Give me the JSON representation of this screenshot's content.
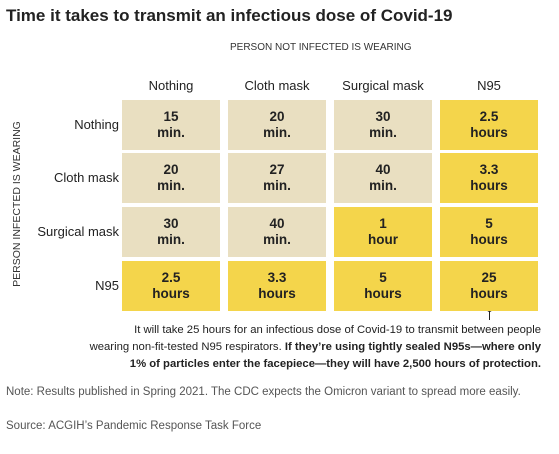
{
  "title": "Time it takes to transmit an infectious dose of Covid-19",
  "column_axis_label": "PERSON NOT INFECTED IS WEARING",
  "row_axis_label": "PERSON INFECTED IS WEARING",
  "table": {
    "columns": [
      "Nothing",
      "Cloth mask",
      "Surgical mask",
      "N95"
    ],
    "rows": [
      {
        "label": "Nothing",
        "cells": [
          {
            "value": "15",
            "unit": "min.",
            "color": "#e9dfc1"
          },
          {
            "value": "20",
            "unit": "min.",
            "color": "#e9dfc1"
          },
          {
            "value": "30",
            "unit": "min.",
            "color": "#e9dfc1"
          },
          {
            "value": "2.5",
            "unit": "hours",
            "color": "#f4d54b"
          }
        ]
      },
      {
        "label": "Cloth mask",
        "cells": [
          {
            "value": "20",
            "unit": "min.",
            "color": "#e9dfc1"
          },
          {
            "value": "27",
            "unit": "min.",
            "color": "#e9dfc1"
          },
          {
            "value": "40",
            "unit": "min.",
            "color": "#e9dfc1"
          },
          {
            "value": "3.3",
            "unit": "hours",
            "color": "#f4d54b"
          }
        ]
      },
      {
        "label": "Surgical mask",
        "cells": [
          {
            "value": "30",
            "unit": "min.",
            "color": "#e9dfc1"
          },
          {
            "value": "40",
            "unit": "min.",
            "color": "#e9dfc1"
          },
          {
            "value": "1",
            "unit": "hour",
            "color": "#f4d54b"
          },
          {
            "value": "5",
            "unit": "hours",
            "color": "#f4d54b"
          }
        ]
      },
      {
        "label": "N95",
        "cells": [
          {
            "value": "2.5",
            "unit": "hours",
            "color": "#f4d54b"
          },
          {
            "value": "3.3",
            "unit": "hours",
            "color": "#f4d54b"
          },
          {
            "value": "5",
            "unit": "hours",
            "color": "#f4d54b"
          },
          {
            "value": "25",
            "unit": "hours",
            "color": "#f4d54b"
          }
        ]
      }
    ]
  },
  "annotation": {
    "lines": [
      [
        {
          "text": "It will take 25 hours for an infectious dose of Covid-19 to transmit between people",
          "bold": false
        }
      ],
      [
        {
          "text": "wearing non-fit-tested N95 respirators. ",
          "bold": false
        },
        {
          "text": "If they’re using tightly sealed N95s—where only",
          "bold": true
        }
      ],
      [
        {
          "text": "1% of particles enter the facepiece—they will have 2,500 hours of protection.",
          "bold": true
        }
      ]
    ]
  },
  "note": "Note: Results published in Spring 2021. The CDC expects the Omicron variant to spread more easily.",
  "source": "Source: ACGIH’s Pandemic Response Task Force"
}
